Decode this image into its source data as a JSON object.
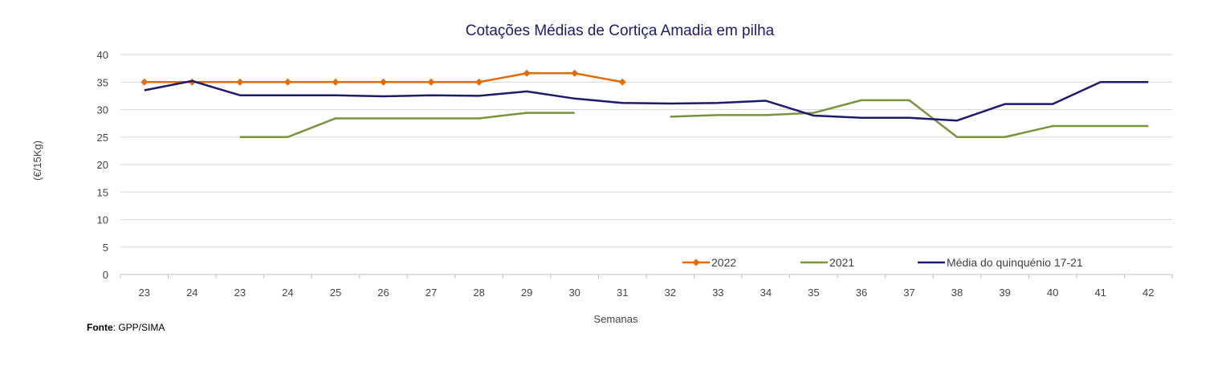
{
  "chart_data": {
    "type": "line",
    "title": "Cotações Médias de Cortiça Amadia em pilha",
    "xlabel": "Semanas",
    "ylabel": "(€/15Kg)",
    "categories": [
      "23",
      "24",
      "23",
      "24",
      "25",
      "26",
      "27",
      "28",
      "29",
      "30",
      "31",
      "32",
      "33",
      "34",
      "35",
      "36",
      "37",
      "38",
      "39",
      "40",
      "41",
      "42"
    ],
    "ylim": [
      0,
      40
    ],
    "yticks": [
      0,
      5,
      10,
      15,
      20,
      25,
      30,
      35,
      40
    ],
    "grid": true,
    "legend_position": "bottom-right",
    "series": [
      {
        "name": "2022",
        "color": "#E36C0A",
        "marker": "diamond",
        "values": [
          35,
          35,
          35,
          35,
          35,
          35,
          35,
          35,
          36.6,
          36.6,
          35,
          null,
          null,
          null,
          null,
          null,
          null,
          null,
          null,
          null,
          null,
          null
        ]
      },
      {
        "name": "2021",
        "color": "#77933C",
        "marker": "none",
        "values": [
          null,
          null,
          25,
          25,
          28.4,
          28.4,
          28.4,
          28.4,
          29.4,
          29.4,
          null,
          28.7,
          29,
          29,
          29.4,
          31.7,
          31.7,
          25,
          25,
          27,
          27,
          27
        ]
      },
      {
        "name": "Média do quinquénio 17-21",
        "color": "#1F1A6E",
        "marker": "none",
        "values": [
          33.5,
          35.2,
          32.6,
          32.6,
          32.6,
          32.4,
          32.6,
          32.5,
          33.3,
          32,
          31.2,
          31.1,
          31.2,
          31.6,
          28.9,
          28.5,
          28.5,
          28,
          31,
          31,
          35,
          35
        ]
      }
    ]
  },
  "source": {
    "label": "Fonte",
    "text": ": GPP/SIMA"
  },
  "colors": {
    "title": "#1F1A6E",
    "grid": "#D9D9D9",
    "axis": "#BFBFBF"
  }
}
